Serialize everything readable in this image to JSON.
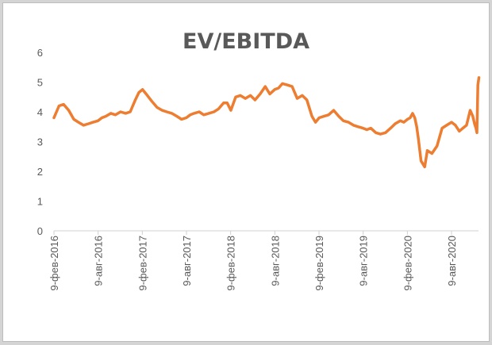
{
  "chart_data": {
    "type": "line",
    "title": "EV/EBITDA",
    "xlabel": "",
    "ylabel": "",
    "ylim": [
      0,
      6
    ],
    "y_ticks": [
      "0",
      "1",
      "2",
      "3",
      "4",
      "5",
      "6"
    ],
    "x_ticks": [
      "9-фев-2016",
      "9-авг-2016",
      "9-фев-2017",
      "9-авг-2017",
      "9-фев-2018",
      "9-авг-2018",
      "9-фев-2019",
      "9-авг-2019",
      "9-фев-2020",
      "9-авг-2020"
    ],
    "grid": false,
    "legend": "none",
    "line_color": "#ed7d31",
    "series": [
      {
        "x": [
          "2016-02-09",
          "2016-03-01",
          "2016-03-20",
          "2016-04-10",
          "2016-05-01",
          "2016-05-20",
          "2016-06-10",
          "2016-07-01",
          "2016-07-20",
          "2016-08-09",
          "2016-08-25",
          "2016-09-10",
          "2016-10-01",
          "2016-10-20",
          "2016-11-10",
          "2016-12-01",
          "2016-12-20",
          "2017-01-10",
          "2017-01-25",
          "2017-02-09",
          "2017-03-01",
          "2017-03-20",
          "2017-04-10",
          "2017-05-01",
          "2017-05-20",
          "2017-06-10",
          "2017-07-01",
          "2017-07-20",
          "2017-08-09",
          "2017-08-25",
          "2017-09-10",
          "2017-10-01",
          "2017-10-20",
          "2017-11-10",
          "2017-12-01",
          "2017-12-20",
          "2018-01-10",
          "2018-01-25",
          "2018-02-09",
          "2018-03-01",
          "2018-03-20",
          "2018-04-10",
          "2018-05-01",
          "2018-05-20",
          "2018-06-10",
          "2018-07-01",
          "2018-07-20",
          "2018-08-09",
          "2018-08-25",
          "2018-09-10",
          "2018-10-01",
          "2018-10-20",
          "2018-11-10",
          "2018-12-01",
          "2018-12-20",
          "2019-01-10",
          "2019-01-25",
          "2019-02-09",
          "2019-03-01",
          "2019-03-20",
          "2019-04-10",
          "2019-05-01",
          "2019-05-20",
          "2019-06-10",
          "2019-07-01",
          "2019-07-20",
          "2019-08-09",
          "2019-08-25",
          "2019-09-10",
          "2019-10-01",
          "2019-10-20",
          "2019-11-10",
          "2019-12-01",
          "2019-12-20",
          "2020-01-10",
          "2020-01-25",
          "2020-02-09",
          "2020-02-20",
          "2020-03-01",
          "2020-03-10",
          "2020-03-18",
          "2020-03-25",
          "2020-04-05",
          "2020-04-20",
          "2020-05-01",
          "2020-05-20",
          "2020-06-10",
          "2020-07-01",
          "2020-07-20",
          "2020-08-09",
          "2020-08-25",
          "2020-09-10",
          "2020-09-25",
          "2020-10-10",
          "2020-10-25",
          "2020-11-05",
          "2020-11-12",
          "2020-11-18",
          "2020-11-22",
          "2020-11-26",
          "2020-11-30"
        ],
        "y": [
          3.8,
          4.2,
          4.25,
          4.05,
          3.75,
          3.65,
          3.55,
          3.6,
          3.65,
          3.7,
          3.8,
          3.85,
          3.95,
          3.9,
          4.0,
          3.95,
          4.0,
          4.4,
          4.65,
          4.75,
          4.55,
          4.35,
          4.15,
          4.05,
          4.0,
          3.95,
          3.85,
          3.75,
          3.8,
          3.9,
          3.95,
          4.0,
          3.9,
          3.95,
          4.0,
          4.1,
          4.3,
          4.3,
          4.05,
          4.5,
          4.55,
          4.45,
          4.55,
          4.4,
          4.6,
          4.85,
          4.6,
          4.75,
          4.8,
          4.95,
          4.9,
          4.85,
          4.45,
          4.55,
          4.4,
          3.85,
          3.65,
          3.8,
          3.85,
          3.9,
          4.05,
          3.85,
          3.7,
          3.65,
          3.55,
          3.5,
          3.45,
          3.4,
          3.45,
          3.3,
          3.25,
          3.3,
          3.45,
          3.6,
          3.7,
          3.65,
          3.75,
          3.8,
          3.95,
          3.8,
          3.5,
          3.1,
          2.35,
          2.15,
          2.7,
          2.6,
          2.85,
          3.45,
          3.55,
          3.65,
          3.55,
          3.35,
          3.45,
          3.55,
          4.05,
          3.85,
          3.6,
          3.45,
          3.3,
          4.9,
          5.15
        ]
      }
    ]
  }
}
